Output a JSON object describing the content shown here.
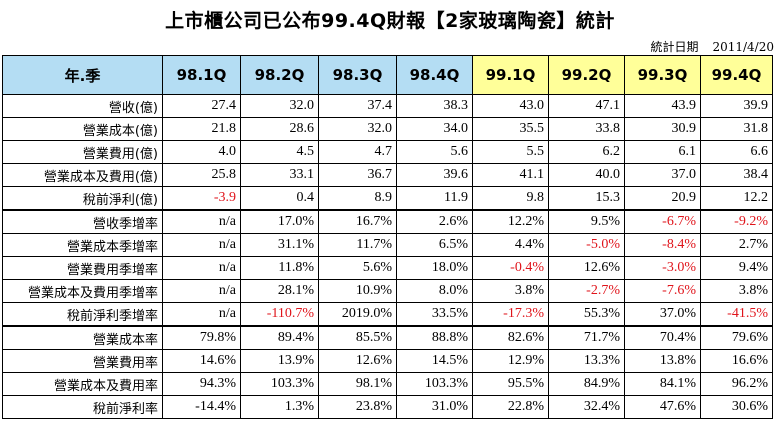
{
  "title": "上市櫃公司已公布99.4Q財報【2家玻璃陶瓷】統計",
  "stat_date_label": "統計日期",
  "stat_date": "2011/4/20",
  "corner": "年.季",
  "columns": [
    "98.1Q",
    "98.2Q",
    "98.3Q",
    "98.4Q",
    "99.1Q",
    "99.2Q",
    "99.3Q",
    "99.4Q"
  ],
  "colors": {
    "header_2009": "#b4ddf3",
    "header_2010": "#ffff99",
    "negative": "#e0141b"
  },
  "rows": [
    {
      "label": "營收(億)",
      "values": [
        "27.4",
        "32.0",
        "37.4",
        "38.3",
        "43.0",
        "47.1",
        "43.9",
        "39.9"
      ],
      "neg": []
    },
    {
      "label": "營業成本(億)",
      "values": [
        "21.8",
        "28.6",
        "32.0",
        "34.0",
        "35.5",
        "33.8",
        "30.9",
        "31.8"
      ],
      "neg": []
    },
    {
      "label": "營業費用(億)",
      "values": [
        "4.0",
        "4.5",
        "4.7",
        "5.6",
        "5.5",
        "6.2",
        "6.1",
        "6.6"
      ],
      "neg": []
    },
    {
      "label": "營業成本及費用(億)",
      "values": [
        "25.8",
        "33.1",
        "36.7",
        "39.6",
        "41.1",
        "40.0",
        "37.0",
        "38.4"
      ],
      "neg": []
    },
    {
      "label": "稅前淨利(億)",
      "values": [
        "-3.9",
        "0.4",
        "8.9",
        "11.9",
        "9.8",
        "15.3",
        "20.9",
        "12.2"
      ],
      "neg": [
        0
      ]
    },
    {
      "label": "營收季增率",
      "values": [
        "n/a",
        "17.0%",
        "16.7%",
        "2.6%",
        "12.2%",
        "9.5%",
        "-6.7%",
        "-9.2%"
      ],
      "neg": [
        6,
        7
      ]
    },
    {
      "label": "營業成本季增率",
      "values": [
        "n/a",
        "31.1%",
        "11.7%",
        "6.5%",
        "4.4%",
        "-5.0%",
        "-8.4%",
        "2.7%"
      ],
      "neg": [
        5,
        6
      ]
    },
    {
      "label": "營業費用季增率",
      "values": [
        "n/a",
        "11.8%",
        "5.6%",
        "18.0%",
        "-0.4%",
        "12.6%",
        "-3.0%",
        "9.4%"
      ],
      "neg": [
        4,
        6
      ]
    },
    {
      "label": "營業成本及費用季增率",
      "values": [
        "n/a",
        "28.1%",
        "10.9%",
        "8.0%",
        "3.8%",
        "-2.7%",
        "-7.6%",
        "3.8%"
      ],
      "neg": [
        5,
        6
      ]
    },
    {
      "label": "稅前淨利季增率",
      "values": [
        "n/a",
        "-110.7%",
        "2019.0%",
        "33.5%",
        "-17.3%",
        "55.3%",
        "37.0%",
        "-41.5%"
      ],
      "neg": [
        1,
        4,
        7
      ]
    },
    {
      "label": "營業成本率",
      "values": [
        "79.8%",
        "89.4%",
        "85.5%",
        "88.8%",
        "82.6%",
        "71.7%",
        "70.4%",
        "79.6%"
      ],
      "neg": []
    },
    {
      "label": "營業費用率",
      "values": [
        "14.6%",
        "13.9%",
        "12.6%",
        "14.5%",
        "12.9%",
        "13.3%",
        "13.8%",
        "16.6%"
      ],
      "neg": []
    },
    {
      "label": "營業成本及費用率",
      "values": [
        "94.3%",
        "103.3%",
        "98.1%",
        "103.3%",
        "95.5%",
        "84.9%",
        "84.1%",
        "96.2%"
      ],
      "neg": []
    },
    {
      "label": "稅前淨利率",
      "values": [
        "-14.4%",
        "1.3%",
        "23.8%",
        "31.0%",
        "22.8%",
        "32.4%",
        "47.6%",
        "30.6%"
      ],
      "neg": []
    }
  ]
}
